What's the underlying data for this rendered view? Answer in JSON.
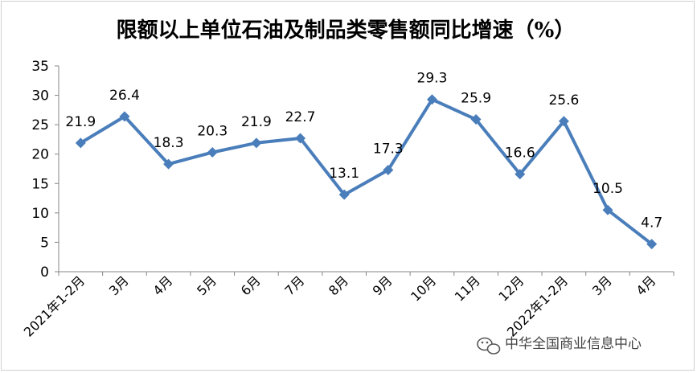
{
  "chart_data": {
    "type": "line",
    "title": "限额以上单位石油及制品类零售额同比增速（%）",
    "xlabel": "",
    "ylabel": "",
    "categories": [
      "2021年1-2月",
      "3月",
      "4月",
      "5月",
      "6月",
      "7月",
      "8月",
      "9月",
      "10月",
      "11月",
      "12月",
      "2022年1-2月",
      "3月",
      "4月"
    ],
    "series": [
      {
        "values": [
          21.9,
          26.4,
          18.3,
          20.3,
          21.9,
          22.7,
          13.1,
          17.3,
          29.3,
          25.9,
          16.6,
          25.6,
          10.5,
          4.7
        ]
      }
    ],
    "ylim": [
      0,
      35
    ],
    "yticks": [
      0,
      5,
      10,
      15,
      20,
      25,
      30,
      35
    ],
    "grid": false,
    "legend": "none",
    "line_color": "#4a7ebb",
    "marker": "diamond"
  },
  "watermark": {
    "text": "中华全国商业信息中心",
    "icon": "wechat-icon"
  }
}
